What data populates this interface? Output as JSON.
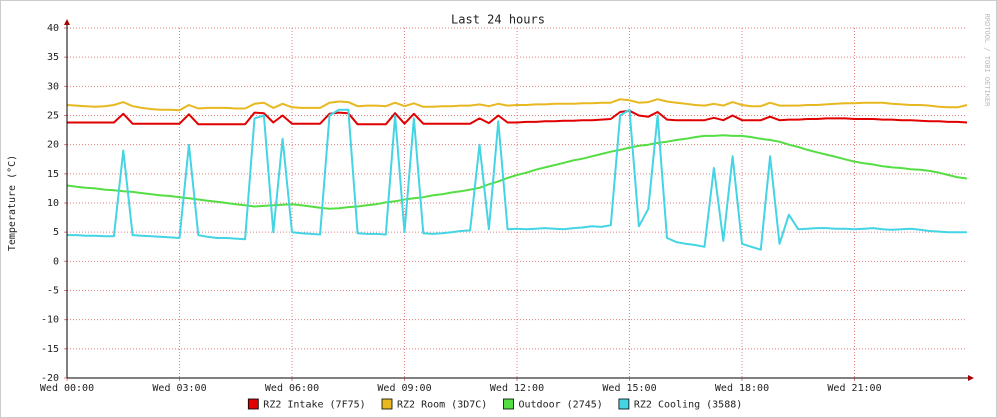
{
  "chart_data": {
    "type": "line",
    "title": "Last 24 hours",
    "y_label": "Temperature (°C)",
    "watermark": "RRDTOOL / TOBI OETIKER",
    "xlim": [
      0,
      24
    ],
    "xticks": [
      {
        "value": 0,
        "label": "Wed 00:00"
      },
      {
        "value": 3,
        "label": "Wed 03:00"
      },
      {
        "value": 6,
        "label": "Wed 06:00"
      },
      {
        "value": 9,
        "label": "Wed 09:00"
      },
      {
        "value": 12,
        "label": "Wed 12:00"
      },
      {
        "value": 15,
        "label": "Wed 15:00"
      },
      {
        "value": 18,
        "label": "Wed 18:00"
      },
      {
        "value": 21,
        "label": "Wed 21:00"
      }
    ],
    "ylim": [
      -20,
      40
    ],
    "yticks": [
      -20,
      -15,
      -10,
      -5,
      0,
      5,
      10,
      15,
      20,
      25,
      30,
      35,
      40
    ],
    "grid": true,
    "legend": "bottom",
    "x": [
      0,
      0.25,
      0.5,
      0.75,
      1,
      1.25,
      1.5,
      1.75,
      2,
      2.25,
      2.5,
      2.75,
      3,
      3.25,
      3.5,
      3.75,
      4,
      4.25,
      4.5,
      4.75,
      5,
      5.25,
      5.5,
      5.75,
      6,
      6.25,
      6.5,
      6.75,
      7,
      7.25,
      7.5,
      7.75,
      8,
      8.25,
      8.5,
      8.75,
      9,
      9.25,
      9.5,
      9.75,
      10,
      10.25,
      10.5,
      10.75,
      11,
      11.25,
      11.5,
      11.75,
      12,
      12.25,
      12.5,
      12.75,
      13,
      13.25,
      13.5,
      13.75,
      14,
      14.25,
      14.5,
      14.75,
      15,
      15.25,
      15.5,
      15.75,
      16,
      16.25,
      16.5,
      16.75,
      17,
      17.25,
      17.5,
      17.75,
      18,
      18.25,
      18.5,
      18.75,
      19,
      19.25,
      19.5,
      19.75,
      20,
      20.25,
      20.5,
      20.75,
      21,
      21.25,
      21.5,
      21.75,
      22,
      22.25,
      22.5,
      22.75,
      23,
      23.25,
      23.5,
      23.75,
      24
    ],
    "series": [
      {
        "name": "RZ2 Intake (7F75)",
        "color": "#e00000",
        "values": [
          23.8,
          23.8,
          23.8,
          23.8,
          23.8,
          23.8,
          25.3,
          23.6,
          23.6,
          23.6,
          23.6,
          23.6,
          23.6,
          25.2,
          23.5,
          23.5,
          23.5,
          23.5,
          23.5,
          23.5,
          25.5,
          25.4,
          23.8,
          25.0,
          23.6,
          23.6,
          23.6,
          23.6,
          25.3,
          25.5,
          25.4,
          23.5,
          23.5,
          23.5,
          23.5,
          25.4,
          23.6,
          25.3,
          23.6,
          23.6,
          23.6,
          23.6,
          23.6,
          23.6,
          24.5,
          23.7,
          25.0,
          23.8,
          23.8,
          23.9,
          23.9,
          24.0,
          24.0,
          24.1,
          24.1,
          24.2,
          24.2,
          24.3,
          24.4,
          25.6,
          25.8,
          25.0,
          24.8,
          25.6,
          24.3,
          24.2,
          24.2,
          24.2,
          24.2,
          24.6,
          24.2,
          25.0,
          24.2,
          24.2,
          24.2,
          24.8,
          24.2,
          24.3,
          24.3,
          24.4,
          24.4,
          24.5,
          24.5,
          24.5,
          24.4,
          24.4,
          24.4,
          24.3,
          24.3,
          24.2,
          24.2,
          24.1,
          24.0,
          24.0,
          23.9,
          23.9,
          23.8
        ]
      },
      {
        "name": "RZ2 Room (3D7C)",
        "color": "#e8b820",
        "values": [
          26.8,
          26.7,
          26.6,
          26.5,
          26.6,
          26.8,
          27.3,
          26.6,
          26.3,
          26.1,
          26.0,
          26.0,
          25.9,
          26.8,
          26.2,
          26.3,
          26.3,
          26.3,
          26.2,
          26.2,
          27.0,
          27.2,
          26.3,
          27.0,
          26.4,
          26.3,
          26.3,
          26.3,
          27.2,
          27.4,
          27.3,
          26.6,
          26.7,
          26.7,
          26.6,
          27.2,
          26.6,
          27.1,
          26.5,
          26.5,
          26.6,
          26.6,
          26.7,
          26.7,
          26.9,
          26.6,
          27.0,
          26.7,
          26.8,
          26.8,
          26.9,
          26.9,
          27.0,
          27.0,
          27.0,
          27.1,
          27.1,
          27.2,
          27.2,
          27.8,
          27.6,
          27.2,
          27.3,
          27.8,
          27.4,
          27.2,
          27.0,
          26.8,
          26.7,
          27.0,
          26.7,
          27.3,
          26.8,
          26.6,
          26.6,
          27.2,
          26.7,
          26.7,
          26.7,
          26.8,
          26.8,
          26.9,
          27.0,
          27.1,
          27.1,
          27.2,
          27.2,
          27.2,
          27.0,
          26.9,
          26.8,
          26.8,
          26.7,
          26.5,
          26.4,
          26.4,
          26.8
        ]
      },
      {
        "name": "Outdoor (2745)",
        "color": "#55dd44",
        "values": [
          13.0,
          12.8,
          12.6,
          12.5,
          12.3,
          12.2,
          12.0,
          11.9,
          11.7,
          11.5,
          11.3,
          11.2,
          11.0,
          10.8,
          10.6,
          10.4,
          10.2,
          10.0,
          9.8,
          9.6,
          9.4,
          9.5,
          9.6,
          9.7,
          9.8,
          9.6,
          9.4,
          9.2,
          9.0,
          9.1,
          9.3,
          9.4,
          9.6,
          9.8,
          10.1,
          10.3,
          10.6,
          10.8,
          11.0,
          11.3,
          11.5,
          11.8,
          12.0,
          12.3,
          12.6,
          13.2,
          13.7,
          14.3,
          14.8,
          15.2,
          15.7,
          16.1,
          16.5,
          16.9,
          17.3,
          17.6,
          18.0,
          18.4,
          18.8,
          19.1,
          19.5,
          19.8,
          20.0,
          20.3,
          20.5,
          20.8,
          21.0,
          21.3,
          21.5,
          21.5,
          21.6,
          21.5,
          21.5,
          21.3,
          21.0,
          20.8,
          20.5,
          20.0,
          19.6,
          19.1,
          18.7,
          18.3,
          17.9,
          17.5,
          17.1,
          16.8,
          16.6,
          16.3,
          16.1,
          16.0,
          15.8,
          15.7,
          15.5,
          15.2,
          14.8,
          14.4,
          14.2
        ]
      },
      {
        "name": "RZ2 Cooling (3588)",
        "color": "#44d4e4",
        "values": [
          4.5,
          4.5,
          4.4,
          4.4,
          4.3,
          4.3,
          19,
          4.5,
          4.4,
          4.3,
          4.2,
          4.1,
          4.0,
          20,
          4.5,
          4.2,
          4.0,
          4.0,
          3.9,
          3.8,
          24.5,
          25,
          5,
          21,
          5,
          4.8,
          4.7,
          4.6,
          25,
          26,
          26,
          4.8,
          4.7,
          4.7,
          4.6,
          25,
          5,
          24.5,
          4.8,
          4.7,
          4.8,
          5.0,
          5.2,
          5.3,
          20,
          5.5,
          24,
          5.5,
          5.6,
          5.5,
          5.6,
          5.7,
          5.6,
          5.5,
          5.7,
          5.8,
          6.0,
          5.9,
          6.2,
          25,
          26,
          6,
          9,
          25,
          4,
          3.3,
          3,
          2.8,
          2.5,
          16,
          3.5,
          18,
          3,
          2.5,
          2,
          18,
          3,
          8,
          5.5,
          5.6,
          5.7,
          5.7,
          5.6,
          5.6,
          5.5,
          5.6,
          5.7,
          5.5,
          5.4,
          5.5,
          5.6,
          5.4,
          5.2,
          5.1,
          5.0,
          5.0,
          5.0
        ]
      }
    ]
  }
}
